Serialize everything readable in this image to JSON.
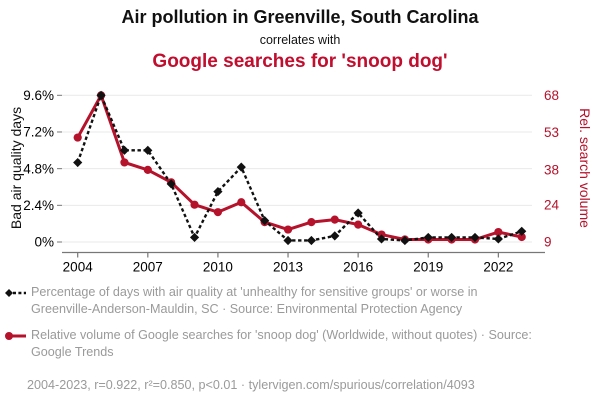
{
  "header": {
    "title": "Air pollution in Greenville, South Carolina",
    "connector": "correlates with",
    "subtitle": "Google searches for 'snoop dog'"
  },
  "chart_data": {
    "type": "line",
    "title": "Air pollution in Greenville, South Carolina correlates with Google searches for 'snoop dog'",
    "x": [
      2004,
      2005,
      2006,
      2007,
      2008,
      2009,
      2010,
      2011,
      2012,
      2013,
      2014,
      2015,
      2016,
      2017,
      2018,
      2019,
      2020,
      2021,
      2022,
      2023
    ],
    "x_tick_labels": [
      2004,
      2007,
      2010,
      2013,
      2016,
      2019,
      2022
    ],
    "series": [
      {
        "name": "Bad air quality days (%)",
        "axis": "left",
        "marker": "diamond",
        "line_style": "dashed",
        "color": "#111111",
        "values": [
          5.2,
          9.6,
          6.0,
          6.0,
          3.8,
          0.3,
          3.3,
          4.9,
          1.4,
          0.1,
          0.1,
          0.4,
          1.9,
          0.2,
          0.1,
          0.3,
          0.3,
          0.3,
          0.2,
          0.7
        ]
      },
      {
        "name": "Rel. search volume",
        "axis": "right",
        "marker": "circle",
        "line_style": "solid",
        "color": "#b5122b",
        "values": [
          51,
          68,
          41,
          38,
          33,
          24,
          21,
          25,
          17,
          14,
          17,
          18,
          16,
          12,
          10,
          10,
          10,
          10,
          13,
          11
        ]
      }
    ],
    "left_axis": {
      "label": "Bad air quality days",
      "ticks": [
        0,
        2.4,
        4.8,
        7.2,
        9.6
      ],
      "tick_labels": [
        "0%",
        "2.4%",
        "4.8%",
        "7.2%",
        "9.6%"
      ],
      "range": [
        0,
        9.6
      ]
    },
    "right_axis": {
      "label": "Rel. search volume",
      "ticks": [
        9,
        24,
        38,
        53,
        68
      ],
      "tick_labels": [
        "9",
        "24",
        "38",
        "53",
        "68"
      ],
      "range": [
        9,
        68
      ]
    },
    "grid": "horizontal only",
    "legend_position": "below"
  },
  "legend": {
    "items": [
      {
        "marker": "black-diamond-dashed",
        "text": "Percentage of days with air quality at 'unhealthy for sensitive groups' or worse in Greenville-Anderson-Mauldin, SC · Source: Environmental Protection Agency"
      },
      {
        "marker": "red-circle-solid",
        "text": "Relative volume of Google searches for 'snoop dog' (Worldwide, without quotes) · Source: Google Trends"
      }
    ]
  },
  "footer": {
    "stats": "2004-2023, r=0.922, r²=0.850, p<0.01 · tylervigen.com/spurious/correlation/4093"
  },
  "colors": {
    "accent_red": "#c10d2e",
    "series_red": "#b5122b",
    "series_black": "#111111",
    "text_gray": "#9a9a9a",
    "gridline": "#e9e9e9",
    "axis": "#777777"
  }
}
